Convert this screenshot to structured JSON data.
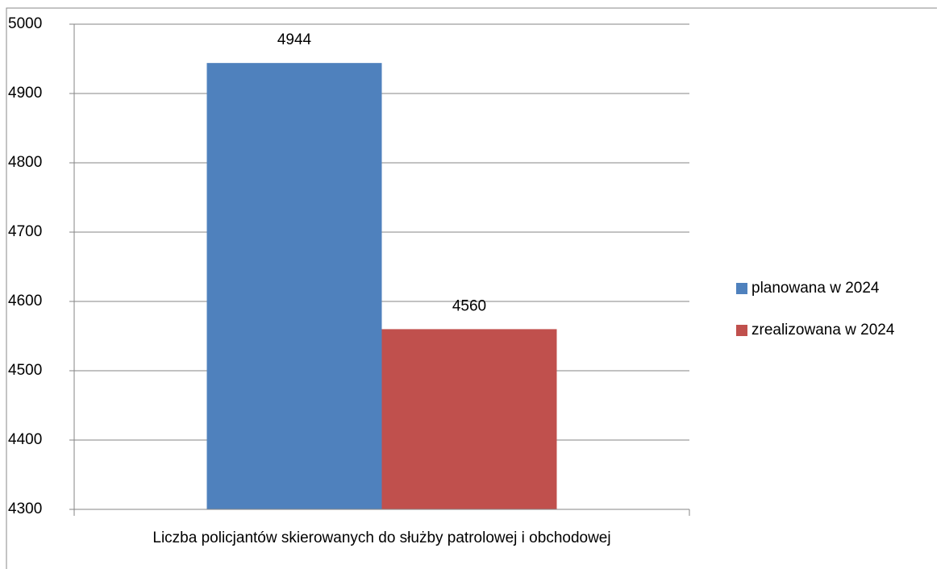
{
  "chart_data": {
    "type": "bar",
    "categories": [
      "Liczba policjantów skierowanych do służby patrolowej i obchodowej"
    ],
    "series": [
      {
        "name": "planowana w 2024",
        "color": "#4f81bd",
        "values": [
          4944
        ]
      },
      {
        "name": "zrealizowana w 2024",
        "color": "#c0504d",
        "values": [
          4560
        ]
      }
    ],
    "ylim": [
      4300,
      5000
    ],
    "yticks": [
      4300,
      4400,
      4500,
      4600,
      4700,
      4800,
      4900,
      5000
    ],
    "grid": true,
    "legend": "right"
  }
}
